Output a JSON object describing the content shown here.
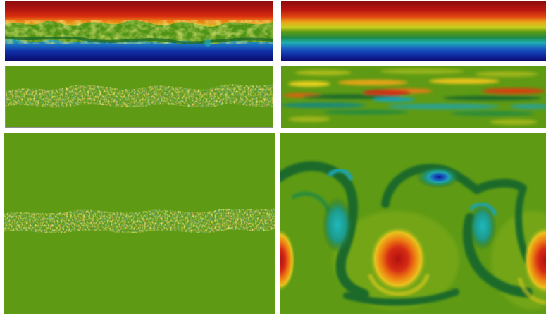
{
  "figure": {
    "panels": [
      {
        "id": "a",
        "field": "scalar-turbulent",
        "colormap": "jet"
      },
      {
        "id": "b",
        "field": "scalar-smooth",
        "colormap": "jet"
      },
      {
        "id": "c",
        "field": "fluctuation-turbulent",
        "colormap": "jet"
      },
      {
        "id": "d",
        "field": "fluctuation-smooth",
        "colormap": "jet"
      },
      {
        "id": "e",
        "field": "vorticity-turbulent",
        "colormap": "jet"
      },
      {
        "id": "f",
        "field": "vorticity-kelvin-helmholtz",
        "colormap": "jet"
      }
    ],
    "colors": {
      "background_green": "#5e9a14",
      "dark_red": "#8b0c0c",
      "red": "#d42b14",
      "orange": "#ee7c12",
      "yellow": "#e8d21c",
      "green": "#5e9a14",
      "dark_green": "#1d6a2a",
      "cyan": "#1fa3ad",
      "blue": "#1030a8",
      "dark_blue": "#0c0c6e"
    }
  }
}
